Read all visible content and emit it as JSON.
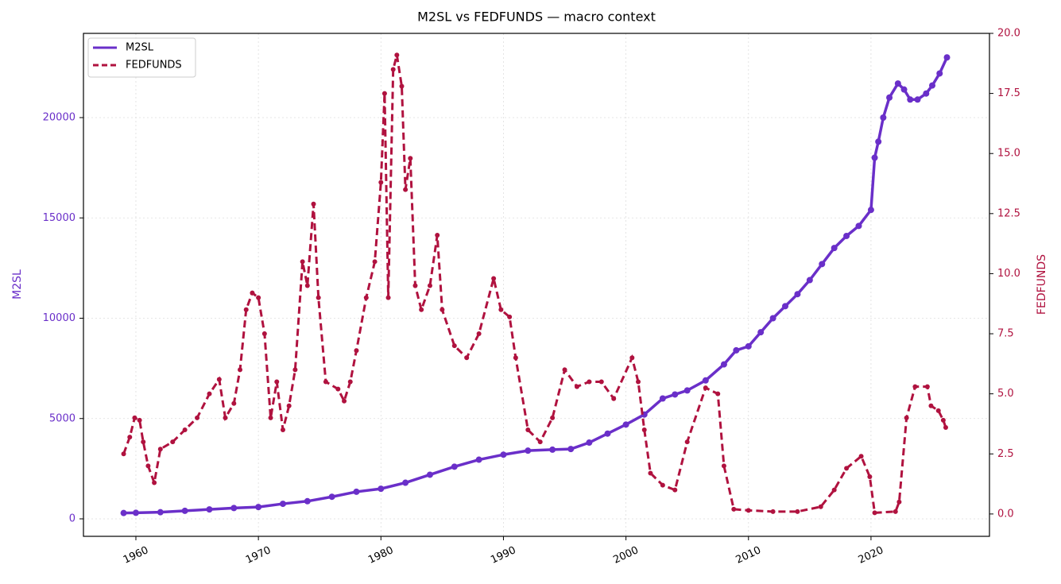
{
  "chart_data": {
    "type": "line",
    "title": "M2SL vs FEDFUNDS — macro context",
    "y_label": "M2SL",
    "y2_label": "FEDFUNDS",
    "xlim": [
      1955.72,
      2029.67
    ],
    "xticks": [
      1960,
      1970,
      1980,
      1990,
      2000,
      2010,
      2020
    ],
    "ylim": [
      -871,
      24198
    ],
    "yticks": [
      0,
      5000,
      10000,
      15000,
      20000
    ],
    "y2lim": [
      -0.93,
      20.0
    ],
    "y2ticks": [
      {
        "value": 0,
        "label": "0.0"
      },
      2.5,
      {
        "value": 5,
        "label": "5.0"
      },
      7.5,
      {
        "value": 10,
        "label": "10.0"
      },
      12.5,
      {
        "value": 15,
        "label": "15.0"
      },
      17.5,
      {
        "value": 20,
        "label": "20.0"
      }
    ],
    "grid": true,
    "legend": "upper left",
    "series": [
      {
        "name": "M2SL",
        "color": "#6a2fc9",
        "dashed": false,
        "x": [
          1959,
          1960,
          1962,
          1964,
          1966,
          1968,
          1970,
          1972,
          1974,
          1976,
          1978,
          1980,
          1982,
          1984,
          1986,
          1988,
          1990,
          1992,
          1994,
          1995.5,
          1997,
          1998.5,
          2000,
          2001.5,
          2003,
          2004,
          2005,
          2006.5,
          2008,
          2009,
          2010,
          2011,
          2012,
          2013,
          2014,
          2015,
          2016,
          2017,
          2018,
          2019,
          2020,
          2020.3,
          2020.6,
          2021,
          2021.5,
          2022.2,
          2022.7,
          2023.2,
          2023.8,
          2024.5,
          2025,
          2025.6,
          2026.2
        ],
        "values": [
          290,
          300,
          330,
          400,
          470,
          540,
          590,
          750,
          880,
          1100,
          1350,
          1500,
          1800,
          2200,
          2600,
          2950,
          3200,
          3400,
          3450,
          3480,
          3800,
          4250,
          4700,
          5200,
          6000,
          6200,
          6400,
          6900,
          7700,
          8400,
          8600,
          9300,
          10000,
          10600,
          11200,
          11900,
          12700,
          13500,
          14100,
          14600,
          15400,
          18000,
          18800,
          20000,
          21000,
          21700,
          21400,
          20900,
          20900,
          21200,
          21600,
          22200,
          23000
        ]
      },
      {
        "name": "FEDFUNDS",
        "color": "#b0123f",
        "dashed": true,
        "axis": "y2",
        "x": [
          1959.0,
          1959.5,
          1959.9,
          1960.3,
          1960.6,
          1961.0,
          1961.5,
          1962,
          1963,
          1964,
          1965,
          1966,
          1966.8,
          1967.3,
          1968,
          1968.5,
          1969,
          1969.5,
          1970,
          1970.5,
          1971,
          1971.5,
          1972,
          1972.5,
          1973,
          1973.6,
          1974,
          1974.5,
          1974.9,
          1975.5,
          1976.5,
          1977,
          1977.5,
          1978,
          1978.8,
          1979.5,
          1980.0,
          1980.3,
          1980.6,
          1981,
          1981.3,
          1981.7,
          1982,
          1982.4,
          1982.8,
          1983.3,
          1984,
          1984.6,
          1985,
          1986,
          1987,
          1988,
          1989.2,
          1989.8,
          1990.5,
          1991,
          1992,
          1993,
          1994,
          1995,
          1996,
          1997,
          1998,
          1999,
          2000.5,
          2001,
          2001.5,
          2002,
          2003,
          2004,
          2005,
          2006.5,
          2007.5,
          2008,
          2008.8,
          2010,
          2012,
          2014,
          2015.9,
          2017,
          2018,
          2019.2,
          2019.9,
          2020.3,
          2022.0,
          2022.3,
          2022.9,
          2023.6,
          2024.6,
          2024.9,
          2025.5,
          2025.9,
          2026.1
        ],
        "values": [
          2.5,
          3.2,
          4.0,
          3.9,
          3.0,
          2.0,
          1.3,
          2.7,
          3.0,
          3.5,
          4.0,
          5.0,
          5.6,
          4.0,
          4.6,
          6.0,
          8.5,
          9.2,
          9.0,
          7.5,
          4.0,
          5.5,
          3.5,
          4.5,
          6.0,
          10.5,
          9.5,
          12.9,
          9.0,
          5.5,
          5.2,
          4.7,
          5.5,
          6.8,
          9.0,
          10.5,
          13.8,
          17.5,
          9.0,
          18.5,
          19.1,
          17.8,
          13.5,
          14.8,
          9.5,
          8.5,
          9.5,
          11.6,
          8.5,
          7.0,
          6.5,
          7.5,
          9.8,
          8.5,
          8.2,
          6.5,
          3.5,
          3.0,
          4.0,
          6.0,
          5.3,
          5.5,
          5.5,
          4.8,
          6.5,
          5.5,
          3.5,
          1.7,
          1.2,
          1.0,
          3.0,
          5.25,
          5.0,
          2.0,
          0.2,
          0.15,
          0.1,
          0.1,
          0.3,
          1.0,
          1.9,
          2.4,
          1.55,
          0.05,
          0.1,
          0.5,
          4.0,
          5.3,
          5.3,
          4.5,
          4.3,
          3.9,
          3.6
        ]
      }
    ]
  }
}
